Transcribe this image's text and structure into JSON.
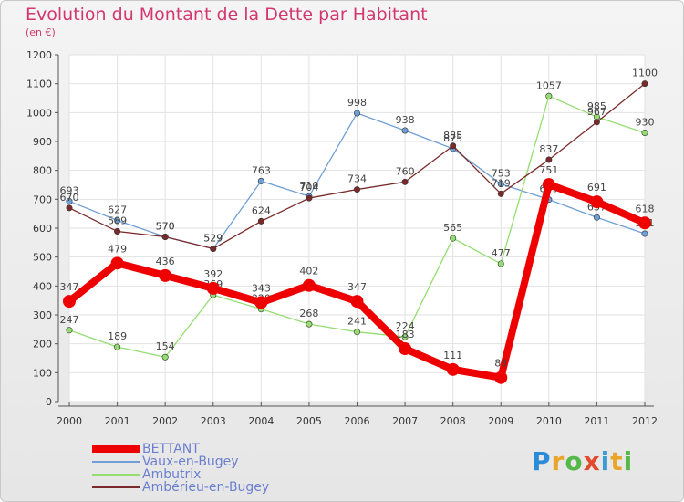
{
  "title": "Evolution du Montant de la Dette par Habitant",
  "unit": "(en €)",
  "logo": "Proxiti",
  "chart_data": {
    "type": "line",
    "x": [
      "2000",
      "2001",
      "2002",
      "2003",
      "2004",
      "2005",
      "2006",
      "2007",
      "2008",
      "2009",
      "2010",
      "2011",
      "2012"
    ],
    "ylim": [
      0,
      1200
    ],
    "yticks": [
      0,
      100,
      200,
      300,
      400,
      500,
      600,
      700,
      800,
      900,
      1000,
      1100,
      1200
    ],
    "grid": true,
    "legend_position": "bottom-left",
    "series": [
      {
        "name": "BETTANT",
        "color": "#ee0000",
        "values": [
          347,
          479,
          436,
          392,
          343,
          402,
          347,
          183,
          111,
          83,
          751,
          691,
          618
        ]
      },
      {
        "name": "Vaux-en-Bugey",
        "color": "#6f9fd6",
        "values": [
          693,
          627,
          570,
          529,
          763,
          710,
          998,
          938,
          875,
          753,
          699,
          637,
          581
        ]
      },
      {
        "name": "Ambutrix",
        "color": "#95dd70",
        "values": [
          247,
          189,
          154,
          369,
          320,
          268,
          241,
          224,
          565,
          477,
          1057,
          985,
          930
        ]
      },
      {
        "name": "Ambérieu-en-Bugey",
        "color": "#7a2a2a",
        "values": [
          670,
          589,
          570,
          529,
          624,
          704,
          734,
          760,
          885,
          719,
          837,
          967,
          1100
        ]
      }
    ]
  }
}
